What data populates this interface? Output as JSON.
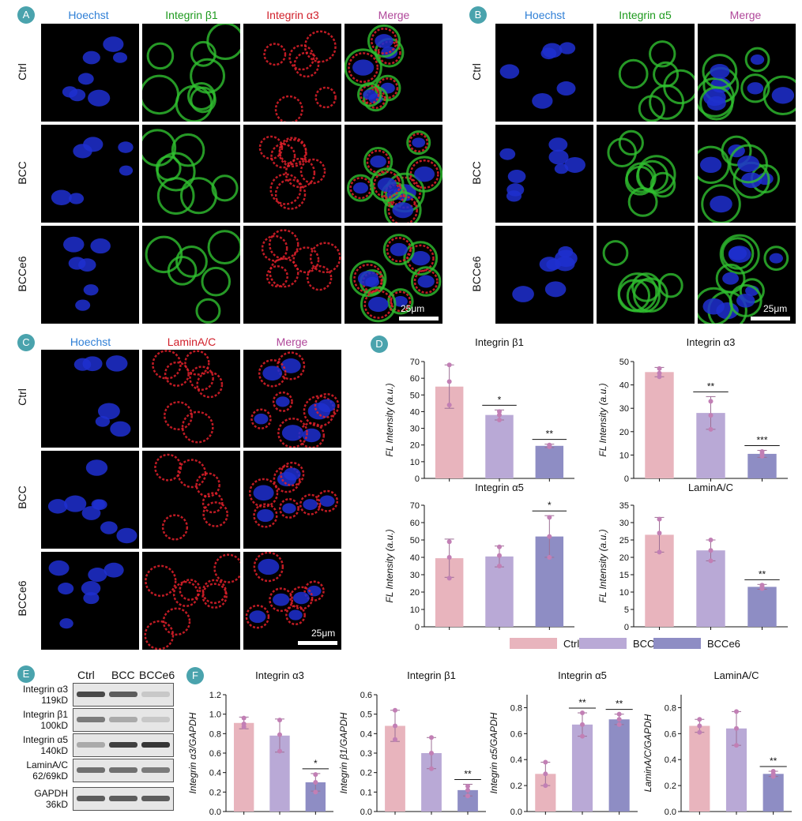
{
  "panels": {
    "A": {
      "label": "A",
      "channels": [
        "Hoechst",
        "Integrin β1",
        "Integrin α3",
        "Merge"
      ],
      "channel_colors": [
        "#2f7fd6",
        "#1e9a1e",
        "#d11f2a",
        "#b0479a"
      ],
      "rows": [
        "Ctrl",
        "BCC",
        "BCCe6"
      ],
      "scale": "25μm"
    },
    "B": {
      "label": "B",
      "channels": [
        "Hoechst",
        "Integrin α5",
        "Merge"
      ],
      "channel_colors": [
        "#2f7fd6",
        "#1e9a1e",
        "#b0479a"
      ],
      "rows": [
        "Ctrl",
        "BCC",
        "BCCe6"
      ],
      "scale": "25μm"
    },
    "C": {
      "label": "C",
      "channels": [
        "Hoechst",
        "LaminA/C",
        "Merge"
      ],
      "channel_colors": [
        "#2f7fd6",
        "#d11f2a",
        "#b0479a"
      ],
      "rows": [
        "Ctrl",
        "BCC",
        "BCCe6"
      ],
      "scale": "25μm"
    },
    "D": {
      "label": "D"
    },
    "E": {
      "label": "E",
      "columns": [
        "Ctrl",
        "BCC",
        "BCCe6"
      ],
      "bands": [
        {
          "name": "Integrin α3",
          "size": "119kD"
        },
        {
          "name": "Integrin β1",
          "size": "100kD"
        },
        {
          "name": "Integrin α5",
          "size": "140kD"
        },
        {
          "name": "LaminA/C",
          "size": "62/69kD"
        },
        {
          "name": "GAPDH",
          "size": "36kD"
        }
      ]
    },
    "F": {
      "label": "F"
    }
  },
  "legend": {
    "items": [
      {
        "name": "Ctrl",
        "color": "#e8b4bd"
      },
      {
        "name": "BCC",
        "color": "#b9a9d6"
      },
      {
        "name": "BCCe6",
        "color": "#8e8dc4"
      }
    ]
  },
  "chart_data": [
    {
      "id": "D1",
      "type": "bar",
      "title": "Integrin β1",
      "ylabel": "FL Intensity (a.u.)",
      "categories": [
        "Ctrl",
        "BCC",
        "BCCe6"
      ],
      "values": [
        55,
        38,
        19.5
      ],
      "errors": [
        13,
        3,
        1
      ],
      "points": [
        [
          44,
          58,
          68
        ],
        [
          35,
          38,
          40
        ],
        [
          19,
          19.5,
          20
        ]
      ],
      "ylim": [
        0,
        70
      ],
      "yticks": [
        0,
        10,
        20,
        30,
        40,
        50,
        60,
        70
      ],
      "sig": [
        null,
        "*",
        "**"
      ]
    },
    {
      "id": "D2",
      "type": "bar",
      "title": "Integrin α3",
      "ylabel": "FL Intensity (a.u.)",
      "categories": [
        "Ctrl",
        "BCC",
        "BCCe6"
      ],
      "values": [
        45.5,
        28,
        10.5
      ],
      "errors": [
        2,
        7,
        1.5
      ],
      "points": [
        [
          43.5,
          45,
          47
        ],
        [
          21,
          27,
          33
        ],
        [
          9.5,
          10.5,
          11.5
        ]
      ],
      "ylim": [
        0,
        50
      ],
      "yticks": [
        0,
        10,
        20,
        30,
        40,
        50
      ],
      "sig": [
        null,
        "**",
        "***"
      ]
    },
    {
      "id": "D3",
      "type": "bar",
      "title": "Integrin α5",
      "ylabel": "FL Intensity (a.u.)",
      "categories": [
        "Ctrl",
        "BCC",
        "BCCe6"
      ],
      "values": [
        39.5,
        40.5,
        52
      ],
      "errors": [
        11,
        6,
        12
      ],
      "points": [
        [
          28,
          40,
          49
        ],
        [
          35,
          41,
          46
        ],
        [
          40,
          52,
          63
        ]
      ],
      "ylim": [
        0,
        70
      ],
      "yticks": [
        0,
        10,
        20,
        30,
        40,
        50,
        60,
        70
      ],
      "sig": [
        null,
        null,
        "*"
      ]
    },
    {
      "id": "D4",
      "type": "bar",
      "title": "LaminA/C",
      "ylabel": "FL Intensity (a.u.)",
      "categories": [
        "Ctrl",
        "BCC",
        "BCCe6"
      ],
      "values": [
        26.5,
        22,
        11.5
      ],
      "errors": [
        5,
        3,
        0.7
      ],
      "points": [
        [
          21.5,
          27,
          31
        ],
        [
          19,
          22,
          25
        ],
        [
          11,
          11.5,
          12
        ]
      ],
      "ylim": [
        0,
        35
      ],
      "yticks": [
        0,
        5,
        10,
        15,
        20,
        25,
        30,
        35
      ],
      "sig": [
        null,
        null,
        "**"
      ]
    },
    {
      "id": "F1",
      "type": "bar",
      "title": "Integrin α3",
      "ylabel": "Integrin α3/GAPDH",
      "categories": [
        "Ctrl",
        "BCC",
        "BCCe6"
      ],
      "values": [
        0.91,
        0.78,
        0.3
      ],
      "errors": [
        0.06,
        0.17,
        0.09
      ],
      "points": [
        [
          0.87,
          0.9,
          0.96
        ],
        [
          0.62,
          0.79,
          0.94
        ],
        [
          0.2,
          0.3,
          0.38
        ]
      ],
      "ylim": [
        0,
        1.2
      ],
      "yticks": [
        0.0,
        0.2,
        0.4,
        0.6,
        0.8,
        1.0,
        1.2
      ],
      "sig": [
        null,
        null,
        "*"
      ]
    },
    {
      "id": "F2",
      "type": "bar",
      "title": "Integrin β1",
      "ylabel": "Integrin β1/GAPDH",
      "categories": [
        "Ctrl",
        "BCC",
        "BCCe6"
      ],
      "values": [
        0.44,
        0.3,
        0.11
      ],
      "errors": [
        0.08,
        0.08,
        0.03
      ],
      "points": [
        [
          0.37,
          0.44,
          0.52
        ],
        [
          0.22,
          0.3,
          0.38
        ],
        [
          0.08,
          0.11,
          0.13
        ]
      ],
      "ylim": [
        0,
        0.6
      ],
      "yticks": [
        0.0,
        0.1,
        0.2,
        0.3,
        0.4,
        0.5,
        0.6
      ],
      "sig": [
        null,
        null,
        "**"
      ]
    },
    {
      "id": "F3",
      "type": "bar",
      "title": "Integrin α5",
      "ylabel": "Integrin α5/GAPDH",
      "categories": [
        "Ctrl",
        "BCC",
        "BCCe6"
      ],
      "values": [
        0.29,
        0.67,
        0.71
      ],
      "errors": [
        0.09,
        0.09,
        0.04
      ],
      "points": [
        [
          0.2,
          0.29,
          0.38
        ],
        [
          0.58,
          0.67,
          0.76
        ],
        [
          0.67,
          0.71,
          0.75
        ]
      ],
      "ylim": [
        0,
        0.9
      ],
      "yticks": [
        0.0,
        0.2,
        0.4,
        0.6,
        0.8
      ],
      "sig": [
        null,
        "**",
        "**"
      ]
    },
    {
      "id": "F4",
      "type": "bar",
      "title": "LaminA/C",
      "ylabel": "LaminA/C/GAPDH",
      "categories": [
        "Ctrl",
        "BCC",
        "BCCe6"
      ],
      "values": [
        0.66,
        0.64,
        0.29
      ],
      "errors": [
        0.05,
        0.13,
        0.02
      ],
      "points": [
        [
          0.61,
          0.66,
          0.71
        ],
        [
          0.51,
          0.64,
          0.77
        ],
        [
          0.27,
          0.29,
          0.31
        ]
      ],
      "ylim": [
        0,
        0.9
      ],
      "yticks": [
        0.0,
        0.2,
        0.4,
        0.6,
        0.8
      ],
      "sig": [
        null,
        null,
        "**"
      ]
    }
  ]
}
